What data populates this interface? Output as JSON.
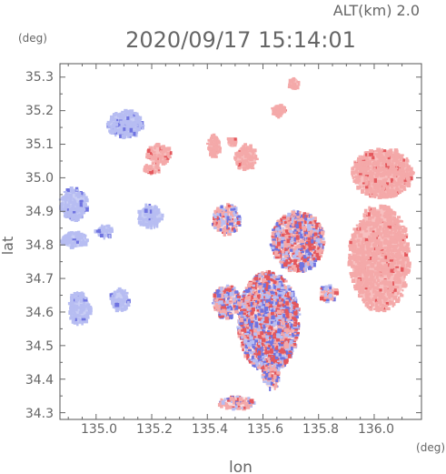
{
  "header": {
    "altitude": "ALT(km) 2.0",
    "timestamp": "2020/09/17 15:14:01"
  },
  "axes": {
    "y_unit": "(deg)",
    "x_unit": "(deg)",
    "y_label": "lat",
    "x_label": "lon",
    "x_ticks": [
      "135.0",
      "135.2",
      "135.4",
      "135.6",
      "135.8",
      "136.0"
    ],
    "y_ticks": [
      "35.3",
      "35.2",
      "35.1",
      "35.0",
      "34.9",
      "34.8",
      "34.7",
      "34.6",
      "34.5",
      "34.4",
      "34.3"
    ]
  },
  "chart_data": {
    "type": "heatmap",
    "xlim": [
      134.87,
      136.17
    ],
    "ylim": [
      34.28,
      35.34
    ],
    "colors": {
      "positive": "#f4a9a9",
      "strong_positive": "#e4575c",
      "negative": "#b7bdf2",
      "strong_negative": "#6f73e0"
    },
    "echo_regions": [
      {
        "name": "west-band",
        "lon": [
          134.87,
          134.97
        ],
        "lat": [
          34.79,
          34.84
        ],
        "sign": "negative",
        "strength": 0.6
      },
      {
        "name": "west-cluster-upper",
        "lon": [
          134.87,
          134.97
        ],
        "lat": [
          34.87,
          34.97
        ],
        "sign": "negative",
        "strength": 0.6
      },
      {
        "name": "west-cluster-lower",
        "lon": [
          134.9,
          134.98
        ],
        "lat": [
          34.56,
          34.66
        ],
        "sign": "negative",
        "strength": 0.5
      },
      {
        "name": "west-small-a",
        "lon": [
          135.0,
          135.06
        ],
        "lat": [
          34.82,
          34.86
        ],
        "sign": "negative",
        "strength": 0.5
      },
      {
        "name": "west-small-b",
        "lon": [
          135.05,
          135.12
        ],
        "lat": [
          34.6,
          34.67
        ],
        "sign": "negative",
        "strength": 0.5
      },
      {
        "name": "north-arc",
        "lon": [
          135.04,
          135.17
        ],
        "lat": [
          35.12,
          35.2
        ],
        "sign": "negative",
        "strength": 0.7
      },
      {
        "name": "north-small-a",
        "lon": [
          135.18,
          135.27
        ],
        "lat": [
          35.04,
          35.1
        ],
        "sign": "positive",
        "strength": 0.5
      },
      {
        "name": "north-small-b",
        "lon": [
          135.17,
          135.23
        ],
        "lat": [
          35.01,
          35.04
        ],
        "sign": "positive",
        "strength": 0.4
      },
      {
        "name": "north-small-c",
        "lon": [
          135.4,
          135.45
        ],
        "lat": [
          35.06,
          35.13
        ],
        "sign": "positive",
        "strength": 0.5
      },
      {
        "name": "north-small-d",
        "lon": [
          135.5,
          135.58
        ],
        "lat": [
          35.02,
          35.1
        ],
        "sign": "positive",
        "strength": 0.5
      },
      {
        "name": "north-small-e",
        "lon": [
          135.63,
          135.68
        ],
        "lat": [
          35.18,
          35.22
        ],
        "sign": "positive",
        "strength": 0.6
      },
      {
        "name": "north-small-f",
        "lon": [
          135.69,
          135.73
        ],
        "lat": [
          35.26,
          35.3
        ],
        "sign": "positive",
        "strength": 0.5
      },
      {
        "name": "north-small-g",
        "lon": [
          135.47,
          135.51
        ],
        "lat": [
          35.09,
          35.12
        ],
        "sign": "positive",
        "strength": 0.4
      },
      {
        "name": "center-west",
        "lon": [
          135.15,
          135.24
        ],
        "lat": [
          34.85,
          34.92
        ],
        "sign": "negative",
        "strength": 0.5
      },
      {
        "name": "center-mixed",
        "lon": [
          135.63,
          135.82
        ],
        "lat": [
          34.72,
          34.9
        ],
        "sign": "mixed",
        "strength": 0.8
      },
      {
        "name": "center-small",
        "lon": [
          135.42,
          135.52
        ],
        "lat": [
          34.83,
          34.92
        ],
        "sign": "mixed",
        "strength": 0.6
      },
      {
        "name": "south-core",
        "lon": [
          135.51,
          135.73
        ],
        "lat": [
          34.42,
          34.72
        ],
        "sign": "mixed",
        "strength": 0.9
      },
      {
        "name": "south-west",
        "lon": [
          135.42,
          135.52
        ],
        "lat": [
          34.58,
          34.68
        ],
        "sign": "mixed",
        "strength": 0.7
      },
      {
        "name": "south-tail",
        "lon": [
          135.6,
          135.66
        ],
        "lat": [
          34.37,
          34.44
        ],
        "sign": "mixed",
        "strength": 0.6
      },
      {
        "name": "south-bottom",
        "lon": [
          135.44,
          135.57
        ],
        "lat": [
          34.31,
          34.35
        ],
        "sign": "mixed",
        "strength": 0.5
      },
      {
        "name": "east-upper",
        "lon": [
          135.92,
          136.14
        ],
        "lat": [
          34.94,
          35.09
        ],
        "sign": "positive",
        "strength": 0.6
      },
      {
        "name": "east-lower",
        "lon": [
          135.91,
          136.13
        ],
        "lat": [
          34.6,
          34.92
        ],
        "sign": "positive",
        "strength": 0.5
      },
      {
        "name": "east-mid",
        "lon": [
          135.8,
          135.87
        ],
        "lat": [
          34.63,
          34.68
        ],
        "sign": "mixed",
        "strength": 0.5
      }
    ]
  }
}
